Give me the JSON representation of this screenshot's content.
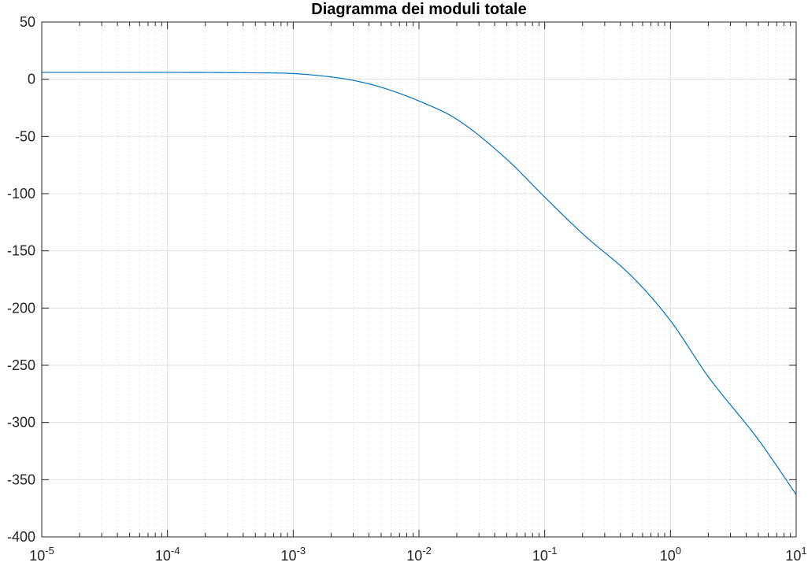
{
  "chart_data": {
    "type": "line",
    "title": "Diagramma dei moduli totale",
    "xlabel": "",
    "ylabel": "",
    "xscale": "log",
    "xlim": [
      1e-05,
      10
    ],
    "ylim": [
      -400,
      50
    ],
    "grid": true,
    "minor_grid_x": true,
    "legend": "none",
    "line_color": "#0072BD",
    "x_ticks": [
      {
        "base": "10",
        "exp": "-5"
      },
      {
        "base": "10",
        "exp": "-4"
      },
      {
        "base": "10",
        "exp": "-3"
      },
      {
        "base": "10",
        "exp": "-2"
      },
      {
        "base": "10",
        "exp": "-1"
      },
      {
        "base": "10",
        "exp": "0"
      },
      {
        "base": "10",
        "exp": "1"
      }
    ],
    "y_ticks": [
      "50",
      "0",
      "-50",
      "-100",
      "-150",
      "-200",
      "-250",
      "-300",
      "-350",
      "-400"
    ],
    "series": [
      {
        "x": [
          1e-05,
          0.0001,
          0.0005,
          0.001,
          0.002,
          0.003,
          0.005,
          0.01,
          0.02,
          0.05,
          0.1,
          0.2,
          0.5,
          1,
          2,
          5,
          10
        ],
        "y": [
          6,
          6,
          5.6,
          5,
          2,
          -1,
          -7,
          -19,
          -35,
          -70,
          -103,
          -135,
          -173,
          -211,
          -260,
          -315,
          -363
        ]
      }
    ]
  }
}
